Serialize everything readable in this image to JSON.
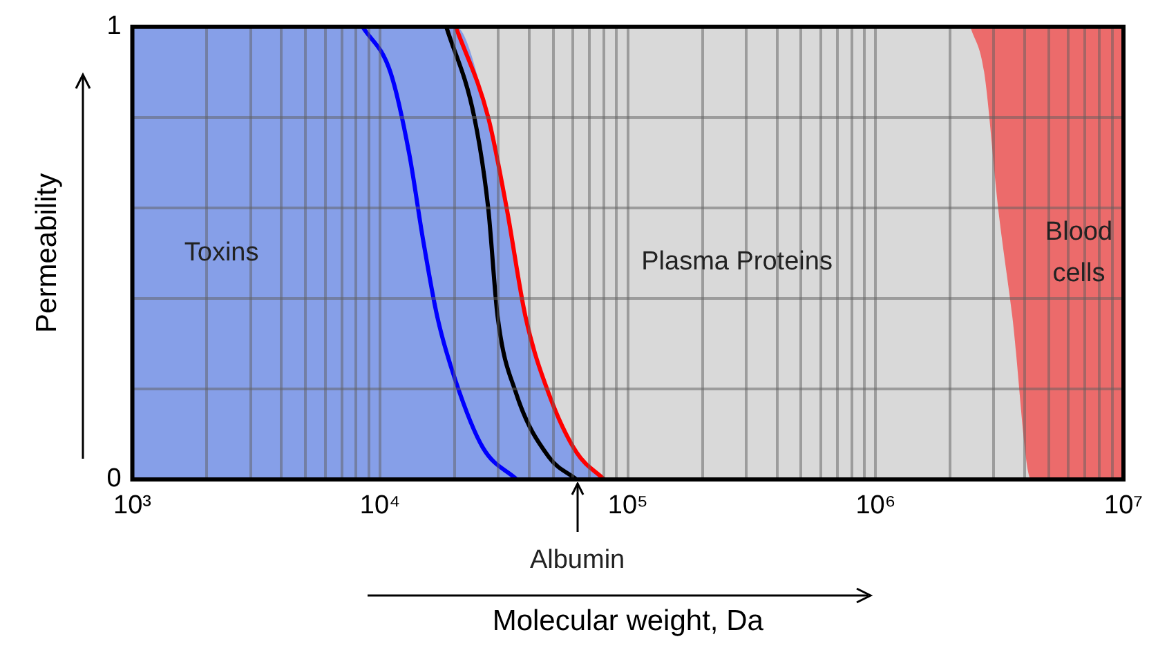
{
  "chart_data": {
    "type": "line",
    "log": "x",
    "xlim": [
      1000,
      10000000
    ],
    "ylim": [
      0,
      1
    ],
    "xticks": [
      {
        "value": 1000,
        "label": "10³"
      },
      {
        "value": 2000,
        "label": null
      },
      {
        "value": 3000,
        "label": null
      },
      {
        "value": 4000,
        "label": null
      },
      {
        "value": 5000,
        "label": null
      },
      {
        "value": 6000,
        "label": null
      },
      {
        "value": 7000,
        "label": null
      },
      {
        "value": 8000,
        "label": null
      },
      {
        "value": 9000,
        "label": null
      },
      {
        "value": 10000,
        "label": "10⁴"
      },
      {
        "value": 20000,
        "label": null
      },
      {
        "value": 30000,
        "label": null
      },
      {
        "value": 40000,
        "label": null
      },
      {
        "value": 50000,
        "label": null
      },
      {
        "value": 60000,
        "label": null
      },
      {
        "value": 70000,
        "label": null
      },
      {
        "value": 80000,
        "label": null
      },
      {
        "value": 90000,
        "label": null
      },
      {
        "value": 100000,
        "label": "10⁵"
      },
      {
        "value": 200000,
        "label": null
      },
      {
        "value": 300000,
        "label": null
      },
      {
        "value": 400000,
        "label": null
      },
      {
        "value": 500000,
        "label": null
      },
      {
        "value": 600000,
        "label": null
      },
      {
        "value": 700000,
        "label": null
      },
      {
        "value": 800000,
        "label": null
      },
      {
        "value": 900000,
        "label": null
      },
      {
        "value": 1000000,
        "label": "10⁶"
      },
      {
        "value": 2000000,
        "label": null
      },
      {
        "value": 3000000,
        "label": null
      },
      {
        "value": 4000000,
        "label": null
      },
      {
        "value": 5000000,
        "label": null
      },
      {
        "value": 6000000,
        "label": null
      },
      {
        "value": 7000000,
        "label": null
      },
      {
        "value": 8000000,
        "label": null
      },
      {
        "value": 9000000,
        "label": null
      },
      {
        "value": 10000000,
        "label": "10⁷"
      }
    ],
    "yticks": [
      0,
      {
        "value": 0.2,
        "label": null
      },
      {
        "value": 0.4,
        "label": null
      },
      {
        "value": 0.6,
        "label": null
      },
      {
        "value": 0.8,
        "label": null
      },
      1
    ],
    "grid": true,
    "legend": false,
    "xlabel": "Molecular weight, Da",
    "ylabel": "Permeability",
    "marker": "none",
    "line_style": "solid",
    "series": [
      {
        "type": "area",
        "color": "#869fe8",
        "x": [
          1000,
          20200,
          27300,
          32400,
          38600,
          47900,
          62000,
          80200
        ],
        "values": [
          1,
          1,
          0.8,
          0.6,
          0.36,
          0.19,
          0.06,
          0
        ]
      },
      {
        "type": "area",
        "color": "#ec6b6b",
        "x": [
          2410000,
          2740000,
          3120000,
          3560000,
          4240000,
          10000000,
          10000000
        ],
        "values": [
          1,
          0.9,
          0.6,
          0.36,
          0,
          0,
          1
        ]
      },
      {
        "color": "#0000ff",
        "x": [
          8500,
          11000,
          13100,
          14900,
          17000,
          20100,
          26000,
          35600
        ],
        "values": [
          1,
          0.9,
          0.72,
          0.53,
          0.36,
          0.22,
          0.07,
          0
        ]
      },
      {
        "color": "#000000",
        "x": [
          18500,
          24000,
          27300,
          29800,
          35400,
          47900,
          62000
        ],
        "values": [
          1,
          0.8,
          0.6,
          0.36,
          0.19,
          0.05,
          0
        ]
      },
      {
        "color": "#ff0000",
        "x": [
          20200,
          27300,
          32400,
          38600,
          47900,
          62000,
          80200
        ],
        "values": [
          1,
          0.8,
          0.6,
          0.36,
          0.19,
          0.06,
          0
        ]
      }
    ],
    "annotations": [
      "Toxins",
      "Plasma Proteins",
      "Blood cells",
      "Albumin"
    ]
  }
}
